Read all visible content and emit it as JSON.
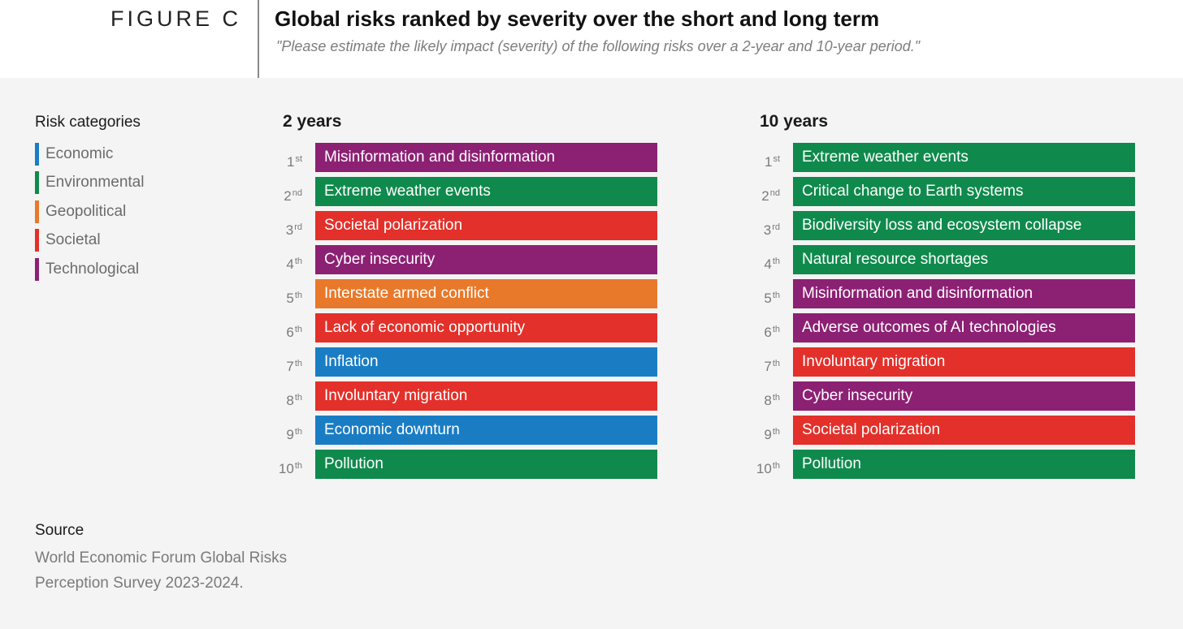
{
  "header": {
    "figure_label": "FIGURE C",
    "title": "Global risks ranked by severity over the short and long term",
    "subtitle": "\"Please estimate the likely impact (severity) of the following risks over a 2-year and 10-year period.\""
  },
  "legend": {
    "title": "Risk categories",
    "items": [
      {
        "label": "Economic",
        "color": "#1a7dc4"
      },
      {
        "label": "Environmental",
        "color": "#0f8a4c"
      },
      {
        "label": "Geopolitical",
        "color": "#e8792a"
      },
      {
        "label": "Societal",
        "color": "#e3302a"
      },
      {
        "label": "Technological",
        "color": "#8c2073"
      }
    ]
  },
  "chart_data": {
    "type": "table",
    "categories": {
      "Economic": "#1a7dc4",
      "Environmental": "#0f8a4c",
      "Geopolitical": "#e8792a",
      "Societal": "#e3302a",
      "Technological": "#8c2073"
    },
    "columns": [
      {
        "title": "2 years",
        "rows": [
          {
            "rank": "1",
            "suffix": "st",
            "label": "Misinformation and disinformation",
            "category": "Technological"
          },
          {
            "rank": "2",
            "suffix": "nd",
            "label": "Extreme weather events",
            "category": "Environmental"
          },
          {
            "rank": "3",
            "suffix": "rd",
            "label": "Societal polarization",
            "category": "Societal"
          },
          {
            "rank": "4",
            "suffix": "th",
            "label": "Cyber insecurity",
            "category": "Technological"
          },
          {
            "rank": "5",
            "suffix": "th",
            "label": "Interstate armed conflict",
            "category": "Geopolitical"
          },
          {
            "rank": "6",
            "suffix": "th",
            "label": "Lack of economic opportunity",
            "category": "Societal"
          },
          {
            "rank": "7",
            "suffix": "th",
            "label": "Inflation",
            "category": "Economic"
          },
          {
            "rank": "8",
            "suffix": "th",
            "label": "Involuntary migration",
            "category": "Societal"
          },
          {
            "rank": "9",
            "suffix": "th",
            "label": "Economic downturn",
            "category": "Economic"
          },
          {
            "rank": "10",
            "suffix": "th",
            "label": "Pollution",
            "category": "Environmental"
          }
        ]
      },
      {
        "title": "10 years",
        "rows": [
          {
            "rank": "1",
            "suffix": "st",
            "label": "Extreme weather events",
            "category": "Environmental"
          },
          {
            "rank": "2",
            "suffix": "nd",
            "label": "Critical change to Earth systems",
            "category": "Environmental"
          },
          {
            "rank": "3",
            "suffix": "rd",
            "label": "Biodiversity loss and ecosystem collapse",
            "category": "Environmental"
          },
          {
            "rank": "4",
            "suffix": "th",
            "label": "Natural resource shortages",
            "category": "Environmental"
          },
          {
            "rank": "5",
            "suffix": "th",
            "label": "Misinformation and disinformation",
            "category": "Technological"
          },
          {
            "rank": "6",
            "suffix": "th",
            "label": "Adverse outcomes of AI technologies",
            "category": "Technological"
          },
          {
            "rank": "7",
            "suffix": "th",
            "label": "Involuntary migration",
            "category": "Societal"
          },
          {
            "rank": "8",
            "suffix": "th",
            "label": "Cyber insecurity",
            "category": "Technological"
          },
          {
            "rank": "9",
            "suffix": "th",
            "label": "Societal polarization",
            "category": "Societal"
          },
          {
            "rank": "10",
            "suffix": "th",
            "label": "Pollution",
            "category": "Environmental"
          }
        ]
      }
    ]
  },
  "source": {
    "title": "Source",
    "text": "World Economic Forum Global Risks Perception Survey 2023-2024."
  }
}
